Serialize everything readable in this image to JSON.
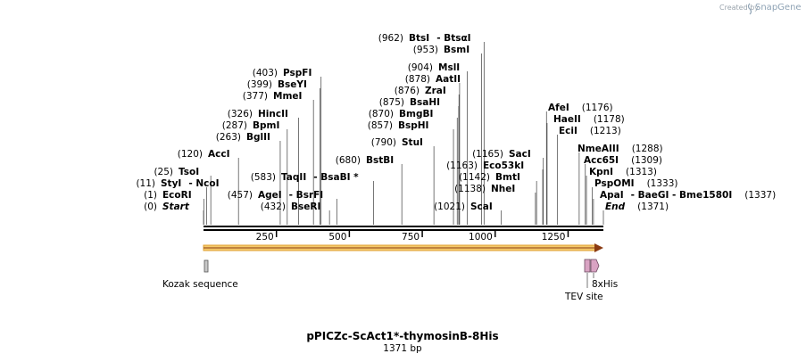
{
  "map": {
    "name": "pPICZc-ScAct1*-thymosinB-8His",
    "length_label": "1371 bp",
    "length": 1371,
    "credit": "Created by",
    "logo": "SnapGene"
  },
  "ticks": [
    {
      "pos": 250,
      "label": "250"
    },
    {
      "pos": 500,
      "label": "500"
    },
    {
      "pos": 750,
      "label": "750"
    },
    {
      "pos": 1000,
      "label": "1000"
    },
    {
      "pos": 1250,
      "label": "1250"
    }
  ],
  "left_sites": [
    {
      "num": "(0)",
      "name": "Start",
      "pos": 0,
      "italic": true
    },
    {
      "num": "(1)",
      "name": "EcoRI",
      "pos": 1
    },
    {
      "num": "(11)",
      "name": "StyI",
      "extra": "-  NcoI",
      "pos": 11
    },
    {
      "num": "(25)",
      "name": "TsoI",
      "pos": 25
    },
    {
      "num": "(120)",
      "name": "AccI",
      "pos": 120
    },
    {
      "num": "(263)",
      "name": "BglII",
      "pos": 263
    },
    {
      "num": "(287)",
      "name": "BpmI",
      "pos": 287
    },
    {
      "num": "(326)",
      "name": "HincII",
      "pos": 326
    },
    {
      "num": "(377)",
      "name": "MmeI",
      "pos": 377
    },
    {
      "num": "(399)",
      "name": "BseYI",
      "pos": 399
    },
    {
      "num": "(403)",
      "name": "PspFI",
      "pos": 403
    },
    {
      "num": "(432)",
      "name": "BseRI",
      "pos": 432
    },
    {
      "num": "(457)",
      "name": "AgeI",
      "extra": "-  BsrFI",
      "pos": 457
    },
    {
      "num": "(583)",
      "name": "TaqII",
      "extra": "-  BsaBI *",
      "pos": 583
    },
    {
      "num": "(680)",
      "name": "BstBI",
      "pos": 680
    },
    {
      "num": "(790)",
      "name": "StuI",
      "pos": 790
    },
    {
      "num": "(857)",
      "name": "BspHI",
      "pos": 857
    },
    {
      "num": "(870)",
      "name": "BmgBI",
      "pos": 870
    },
    {
      "num": "(875)",
      "name": "BsaHI",
      "pos": 875
    },
    {
      "num": "(876)",
      "name": "ZraI",
      "pos": 876
    },
    {
      "num": "(878)",
      "name": "AatII",
      "pos": 878
    },
    {
      "num": "(904)",
      "name": "MslI",
      "pos": 904
    },
    {
      "num": "(953)",
      "name": "BsmI",
      "pos": 953
    },
    {
      "num": "(962)",
      "name": "BtsI",
      "extra": "-  BtsαI",
      "pos": 962
    }
  ],
  "right_sites": [
    {
      "name": "ScaI",
      "num": "(1021)",
      "pos": 1021
    },
    {
      "name": "NheI",
      "num": "(1138)",
      "pos": 1138
    },
    {
      "name": "BmtI",
      "num": "(1142)",
      "pos": 1142
    },
    {
      "name": "Eco53kI",
      "num": "(1163)",
      "pos": 1163
    },
    {
      "name": "SacI",
      "num": "(1165)",
      "pos": 1165
    },
    {
      "name": "AfeI",
      "num": "(1176)",
      "pos": 1176
    },
    {
      "name": "HaeII",
      "num": "(1178)",
      "pos": 1178
    },
    {
      "name": "EciI",
      "num": "(1213)",
      "pos": 1213
    },
    {
      "name": "NmeAIII",
      "num": "(1288)",
      "pos": 1288
    },
    {
      "name": "Acc65I",
      "num": "(1309)",
      "pos": 1309
    },
    {
      "name": "KpnI",
      "num": "(1313)",
      "pos": 1313
    },
    {
      "name": "PspOMI",
      "num": "(1333)",
      "pos": 1333
    },
    {
      "name": "ApaI",
      "extra": "-  BaeGI  -  Bme1580I",
      "num": "(1337)",
      "pos": 1337
    },
    {
      "name": "End",
      "num": "(1371)",
      "pos": 1371,
      "italic": true
    }
  ],
  "features": [
    {
      "id": "kozak",
      "label": "Kozak sequence"
    },
    {
      "id": "tev",
      "label": "TEV site"
    },
    {
      "id": "his",
      "label": "8xHis"
    }
  ],
  "colors": {
    "arrow_fill": "#f4c96b",
    "arrow_stroke": "#e0a030",
    "arrow_line": "#8a3b12",
    "feature_fill": "#d9a3c3",
    "feature_stroke": "#6b4a60",
    "kozak_fill": "#c8c8c8"
  }
}
